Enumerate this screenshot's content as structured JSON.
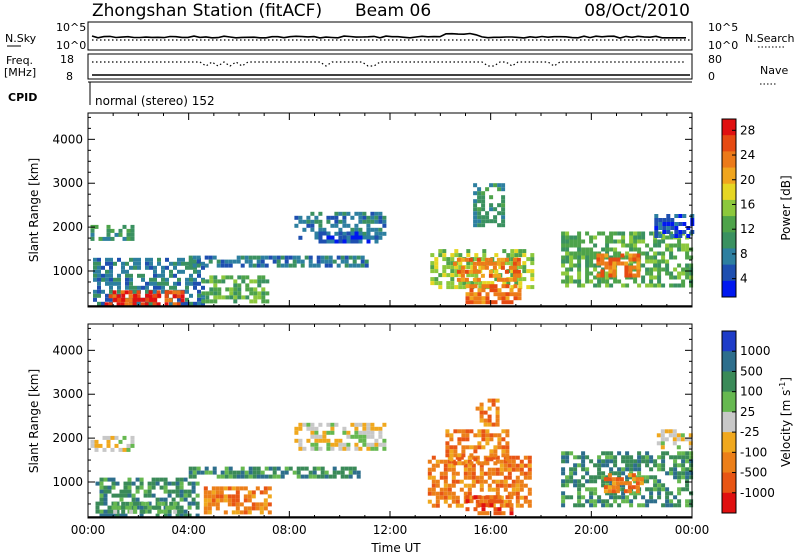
{
  "header": {
    "title": "Zhongshan Station (fitACF)",
    "beam": "Beam 06",
    "date": "08/Oct/2010"
  },
  "top_panels": {
    "nsky_label": "N.Sky",
    "nsearch_label": "N.Search",
    "nsky_ticks": [
      "10^5",
      "10^0"
    ],
    "nsearch_ticks": [
      "10^5",
      "10^0"
    ],
    "freq_label_line1": "Freq.",
    "freq_label_line2": "[MHz]",
    "freq_ticks": [
      "18",
      "8"
    ],
    "nave_label": "Nave",
    "nave_ticks": [
      "80",
      "0"
    ],
    "cpid_label": "CPID",
    "cpid_value": "normal (stereo) 152"
  },
  "chart_data": [
    {
      "type": "heatmap",
      "name": "power",
      "ylabel": "Slant Range [km]",
      "xlabel": "",
      "x_ticks": [
        "00:00",
        "04:00",
        "08:00",
        "12:00",
        "16:00",
        "20:00",
        "00:00"
      ],
      "xlim_hours": [
        0,
        24
      ],
      "ylim": [
        180,
        4600
      ],
      "y_ticks": [
        1000,
        2000,
        3000,
        4000
      ],
      "colorbar": {
        "label": "Power [dB]",
        "ticks": [
          "4",
          "8",
          "12",
          "16",
          "20",
          "24",
          "28"
        ],
        "colors": [
          "#0018f0",
          "#1e4fb0",
          "#2d7fa0",
          "#3a9160",
          "#4ea34a",
          "#8cc83c",
          "#e6d623",
          "#f0a51e",
          "#ec7a19",
          "#e64a12",
          "#e01010"
        ]
      },
      "regions": [
        {
          "t0": 0.1,
          "t1": 1.7,
          "r0": 1750,
          "r1": 2050,
          "level": 3
        },
        {
          "t0": 0.2,
          "t1": 4.6,
          "r0": 250,
          "r1": 1300,
          "level": 2
        },
        {
          "t0": 0.5,
          "t1": 3.8,
          "r0": 280,
          "r1": 560,
          "level": 9
        },
        {
          "t0": 1.0,
          "t1": 3.0,
          "r0": 330,
          "r1": 480,
          "level": 10
        },
        {
          "t0": 4.0,
          "t1": 11.0,
          "r0": 1100,
          "r1": 1350,
          "level": 2
        },
        {
          "t0": 4.5,
          "t1": 7.2,
          "r0": 300,
          "r1": 900,
          "level": 4
        },
        {
          "t0": 8.2,
          "t1": 11.8,
          "r0": 1800,
          "r1": 2350,
          "level": 2
        },
        {
          "t0": 9.0,
          "t1": 11.4,
          "r0": 1700,
          "r1": 1900,
          "level": 1
        },
        {
          "t0": 13.6,
          "t1": 17.6,
          "r0": 600,
          "r1": 1500,
          "level": 5
        },
        {
          "t0": 14.5,
          "t1": 17.2,
          "r0": 800,
          "r1": 1300,
          "level": 8
        },
        {
          "t0": 15.0,
          "t1": 17.2,
          "r0": 300,
          "r1": 700,
          "level": 8
        },
        {
          "t0": 15.3,
          "t1": 16.5,
          "r0": 2000,
          "r1": 3000,
          "level": 3
        },
        {
          "t0": 18.8,
          "t1": 23.9,
          "r0": 700,
          "r1": 1900,
          "level": 4
        },
        {
          "t0": 20.2,
          "t1": 21.8,
          "r0": 900,
          "r1": 1400,
          "level": 8
        },
        {
          "t0": 22.5,
          "t1": 24.0,
          "r0": 1800,
          "r1": 2300,
          "level": 1
        }
      ]
    },
    {
      "type": "heatmap",
      "name": "velocity",
      "ylabel": "Slant Range [km]",
      "xlabel": "Time UT",
      "x_ticks": [
        "00:00",
        "04:00",
        "08:00",
        "12:00",
        "16:00",
        "20:00",
        "00:00"
      ],
      "xlim_hours": [
        0,
        24
      ],
      "ylim": [
        180,
        4600
      ],
      "y_ticks": [
        1000,
        2000,
        3000,
        4000
      ],
      "colorbar": {
        "label": "Velocity [m s",
        "label_sup": "-1",
        "label_end": "]",
        "ticks": [
          "1000",
          "500",
          "100",
          "25",
          "-25",
          "-100",
          "-500",
          "-1000"
        ],
        "colors": [
          "#1e3cc8",
          "#2d6e8c",
          "#3a8a58",
          "#66b850",
          "#c8c8c8",
          "#f0a81e",
          "#ec7f19",
          "#e85514",
          "#e01010"
        ]
      },
      "regions": [
        {
          "t0": 0.1,
          "t1": 1.7,
          "r0": 1750,
          "r1": 2050,
          "level": 4
        },
        {
          "t0": 0.3,
          "t1": 4.4,
          "r0": 250,
          "r1": 1100,
          "level": 2
        },
        {
          "t0": 1.0,
          "t1": 3.6,
          "r0": 300,
          "r1": 550,
          "level": 3
        },
        {
          "t0": 4.0,
          "t1": 10.8,
          "r0": 1100,
          "r1": 1350,
          "level": 2
        },
        {
          "t0": 4.6,
          "t1": 7.2,
          "r0": 300,
          "r1": 900,
          "level": 6
        },
        {
          "t0": 8.2,
          "t1": 11.8,
          "r0": 1800,
          "r1": 2350,
          "level": 4
        },
        {
          "t0": 13.5,
          "t1": 17.6,
          "r0": 500,
          "r1": 1600,
          "level": 6
        },
        {
          "t0": 14.2,
          "t1": 16.6,
          "r0": 1400,
          "r1": 2200,
          "level": 6
        },
        {
          "t0": 15.0,
          "t1": 16.8,
          "r0": 300,
          "r1": 700,
          "level": 7
        },
        {
          "t0": 15.4,
          "t1": 16.2,
          "r0": 2300,
          "r1": 2900,
          "level": 6
        },
        {
          "t0": 18.8,
          "t1": 23.9,
          "r0": 500,
          "r1": 1700,
          "level": 2
        },
        {
          "t0": 20.5,
          "t1": 22.0,
          "r0": 800,
          "r1": 1200,
          "level": 6
        },
        {
          "t0": 22.6,
          "t1": 24.0,
          "r0": 1800,
          "r1": 2200,
          "level": 4
        }
      ]
    }
  ]
}
